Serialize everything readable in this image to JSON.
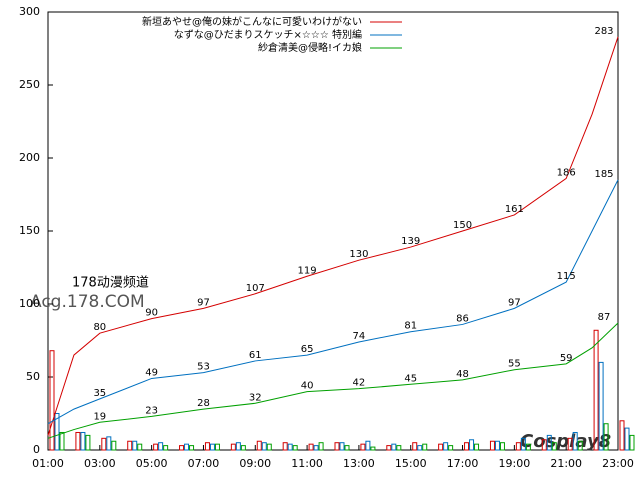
{
  "chart_data": {
    "type": "line",
    "xlim": [
      1,
      23
    ],
    "ylim": [
      0,
      300
    ],
    "xticks": [
      {
        "value": 1,
        "label": "01:00"
      },
      {
        "value": 3,
        "label": "03:00"
      },
      {
        "value": 5,
        "label": "05:00"
      },
      {
        "value": 7,
        "label": "07:00"
      },
      {
        "value": 9,
        "label": "09:00"
      },
      {
        "value": 11,
        "label": "11:00"
      },
      {
        "value": 13,
        "label": "13:00"
      },
      {
        "value": 15,
        "label": "15:00"
      },
      {
        "value": 17,
        "label": "17:00"
      },
      {
        "value": 19,
        "label": "19:00"
      },
      {
        "value": 21,
        "label": "21:00"
      },
      {
        "value": 23,
        "label": "23:00"
      }
    ],
    "yticks": [
      0,
      50,
      100,
      150,
      200,
      250,
      300
    ],
    "x": [
      1,
      2,
      3,
      5,
      7,
      9,
      11,
      13,
      15,
      17,
      19,
      21,
      22,
      23
    ],
    "series": [
      {
        "name": "新垣あやせ@俺の妹がこんなに可愛いわけがない",
        "color": "#d40000",
        "values": [
          10,
          65,
          80,
          90,
          97,
          107,
          119,
          130,
          139,
          150,
          161,
          186,
          230,
          283
        ]
      },
      {
        "name": "なずな@ひだまりスケッチ×☆☆☆ 特別編",
        "color": "#0070c0",
        "values": [
          18,
          28,
          35,
          49,
          53,
          61,
          65,
          74,
          81,
          86,
          97,
          115,
          150,
          185
        ]
      },
      {
        "name": "紗倉清美@侵略!イカ娘",
        "color": "#00a000",
        "values": [
          8,
          14,
          19,
          23,
          28,
          32,
          40,
          42,
          45,
          48,
          55,
          59,
          70,
          87
        ]
      }
    ],
    "bars": {
      "x": [
        1,
        2,
        3,
        4,
        5,
        6,
        7,
        8,
        9,
        10,
        11,
        12,
        13,
        14,
        15,
        16,
        17,
        18,
        19,
        20,
        21,
        22,
        23
      ],
      "series": [
        [
          68,
          12,
          8,
          6,
          4,
          3,
          5,
          4,
          6,
          5,
          4,
          5,
          4,
          3,
          5,
          4,
          5,
          6,
          5,
          7,
          8,
          82,
          20
        ],
        [
          25,
          12,
          9,
          6,
          5,
          4,
          4,
          5,
          5,
          4,
          3,
          5,
          6,
          4,
          3,
          5,
          7,
          6,
          8,
          10,
          12,
          60,
          15
        ],
        [
          12,
          10,
          6,
          4,
          3,
          3,
          4,
          3,
          4,
          3,
          5,
          3,
          2,
          3,
          4,
          3,
          4,
          5,
          4,
          5,
          6,
          18,
          10
        ]
      ]
    },
    "watermarks": [
      "178动漫频道",
      "Acg.178.COM",
      "Cosplay8"
    ]
  }
}
